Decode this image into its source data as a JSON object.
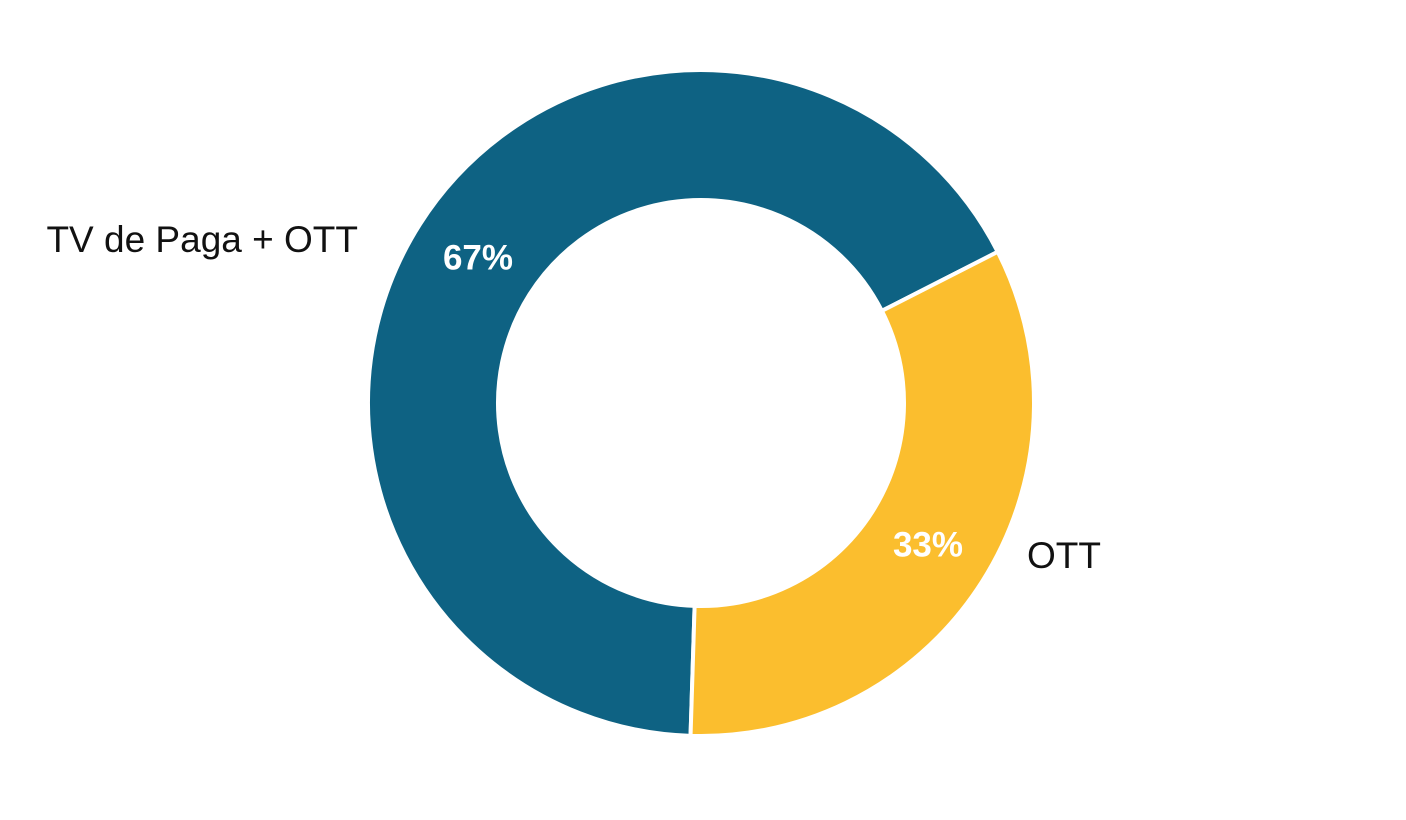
{
  "chart_data": {
    "type": "donut",
    "categories": [
      "TV de Paga + OTT",
      "OTT"
    ],
    "values": [
      67,
      33
    ],
    "value_labels": [
      "67%",
      "33%"
    ],
    "colors": [
      "#0e6283",
      "#fbbe2e"
    ]
  }
}
